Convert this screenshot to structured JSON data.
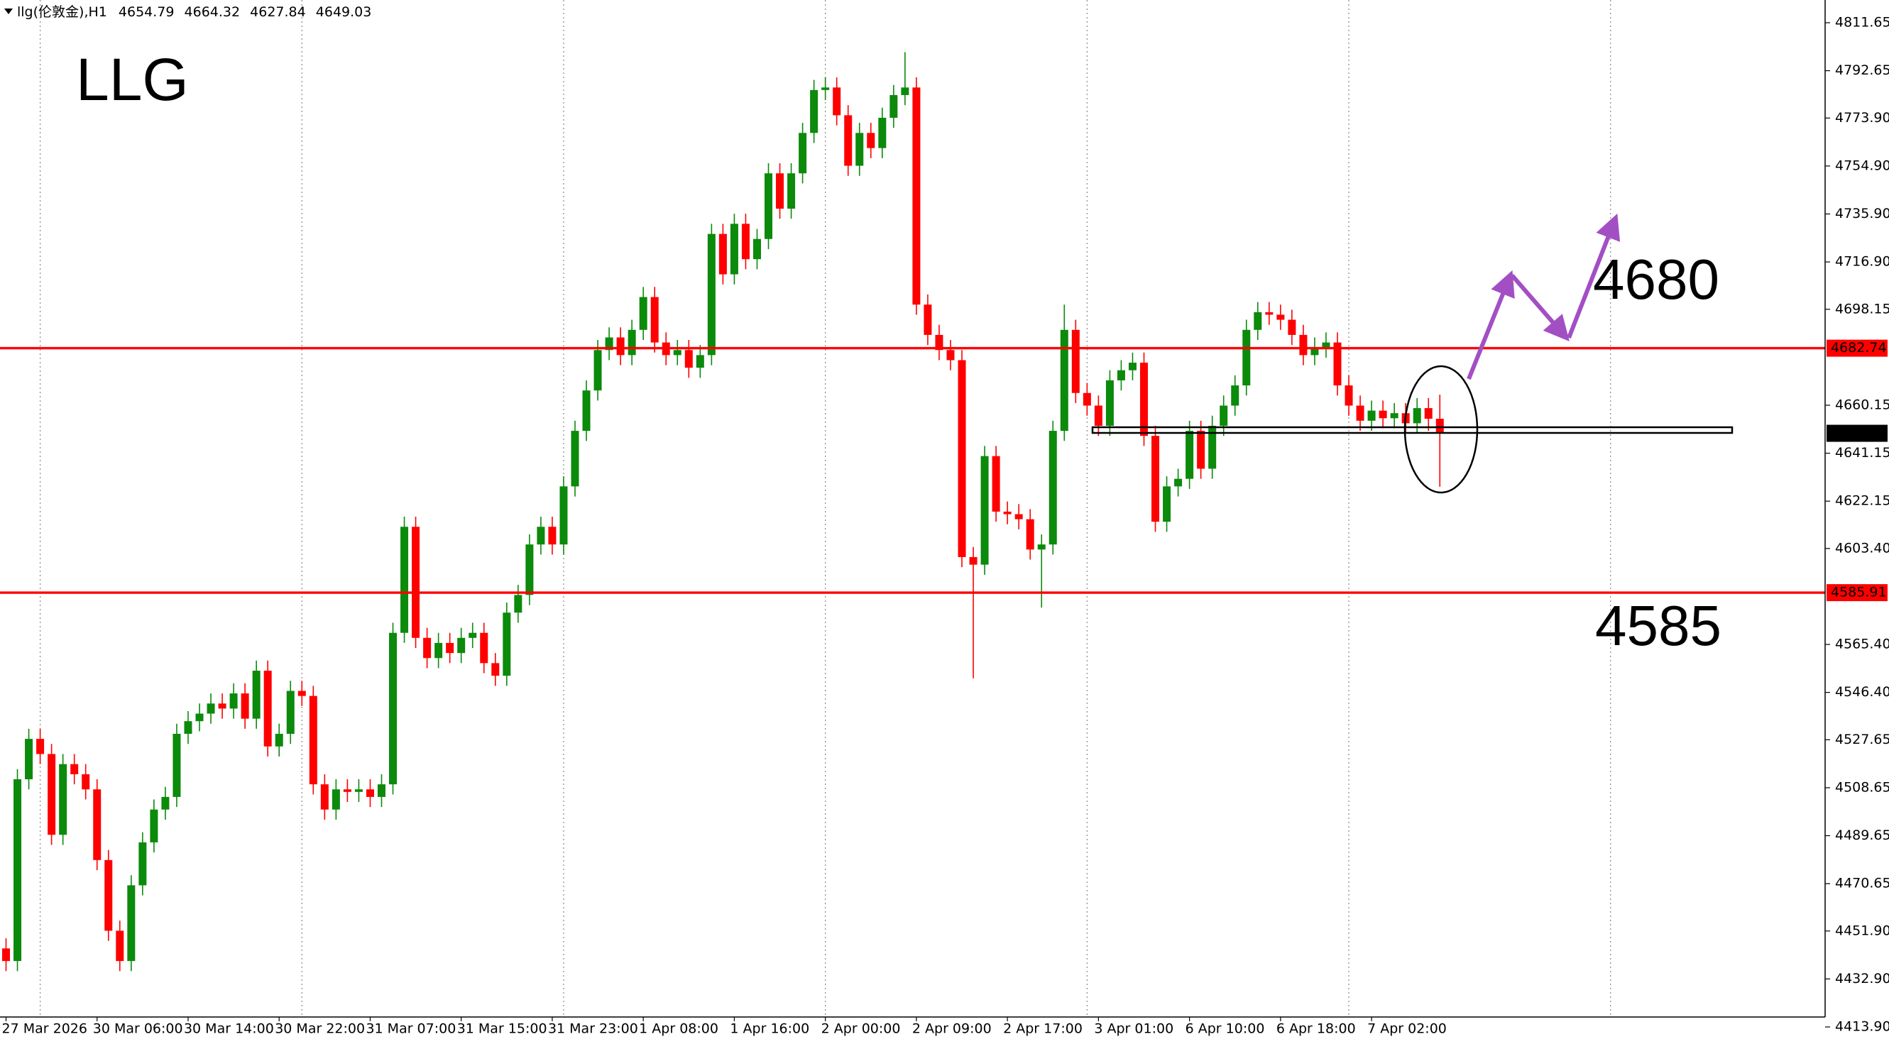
{
  "chart_data": {
    "type": "candlestick",
    "header": "llg(伦敦金),H1",
    "title": "LLG",
    "annotations": [
      "4680",
      "4585"
    ],
    "up_color": "#0b8a0b",
    "down_color": "#ff0000",
    "ylim": [
      4413.9,
      4820.65
    ],
    "yticks": [
      {
        "value": 4413.9,
        "label": "4413.90"
      },
      {
        "value": 4432.9,
        "label": "4432.90"
      },
      {
        "value": 4451.9,
        "label": "4451.90"
      },
      4470.65,
      4489.65,
      4508.65,
      4527.65,
      {
        "value": 4546.4,
        "label": "4546.40"
      },
      {
        "value": 4565.4,
        "label": "4565.40"
      },
      {
        "value": 4603.4,
        "label": "4603.40"
      },
      4622.15,
      4641.15,
      4660.15,
      4698.15,
      {
        "value": 4716.9,
        "label": "4716.90"
      },
      {
        "value": 4735.9,
        "label": "4735.90"
      },
      {
        "value": 4754.9,
        "label": "4754.90"
      },
      {
        "value": 4773.9,
        "label": "4773.90"
      },
      4792.65,
      4811.65
    ],
    "hlines": [
      {
        "value": 4682.74,
        "color": "#ff0000"
      },
      {
        "value": 4585.91,
        "color": "#ff0000"
      }
    ],
    "categories": [
      "27 Mar 2026",
      null,
      null,
      null,
      null,
      null,
      null,
      null,
      "30 Mar 06:00",
      null,
      null,
      null,
      null,
      null,
      null,
      null,
      "30 Mar 14:00",
      null,
      null,
      null,
      null,
      null,
      null,
      null,
      "30 Mar 22:00",
      null,
      null,
      null,
      null,
      null,
      null,
      null,
      "31 Mar 07:00",
      null,
      null,
      null,
      null,
      null,
      null,
      null,
      "31 Mar 15:00",
      null,
      null,
      null,
      null,
      null,
      null,
      null,
      "31 Mar 23:00",
      null,
      null,
      null,
      null,
      null,
      null,
      null,
      "1 Apr 08:00",
      null,
      null,
      null,
      null,
      null,
      null,
      null,
      "1 Apr 16:00",
      null,
      null,
      null,
      null,
      null,
      null,
      null,
      "2 Apr 00:00",
      null,
      null,
      null,
      null,
      null,
      null,
      null,
      "2 Apr 09:00",
      null,
      null,
      null,
      null,
      null,
      null,
      null,
      "2 Apr 17:00",
      null,
      null,
      null,
      null,
      null,
      null,
      null,
      "3 Apr 01:00",
      null,
      null,
      null,
      null,
      null,
      null,
      null,
      "6 Apr 10:00",
      null,
      null,
      null,
      null,
      null,
      null,
      null,
      "6 Apr 18:00",
      null,
      null,
      null,
      null,
      null,
      null,
      null,
      "7 Apr 02:00",
      null,
      null,
      null,
      null,
      null,
      null
    ],
    "open": [
      4445,
      4440,
      4512,
      4528,
      4522,
      4490,
      4518,
      4514,
      4508,
      4480,
      4452,
      4440,
      4470,
      4487,
      4500,
      4505,
      4530,
      4535,
      4538,
      4542,
      4540,
      4546,
      4536,
      4555,
      4525,
      4530,
      4547,
      4545,
      4510,
      4500,
      4508,
      4507,
      4508,
      4505,
      4510,
      4570,
      4612,
      4568,
      4560,
      4566,
      4562,
      4568,
      4570,
      4558,
      4553,
      4578,
      4585,
      4605,
      4612,
      4605,
      4628,
      4650,
      4666,
      4682,
      4687,
      4680,
      4690,
      4703,
      4685,
      4680,
      4682,
      4675,
      4680,
      4728,
      4712,
      4732,
      4718,
      4726,
      4752,
      4738,
      4752,
      4768,
      4785,
      4786,
      4775,
      4755,
      4768,
      4762,
      4774,
      4783,
      4786,
      4700,
      4688,
      4682,
      4678,
      4600,
      4597,
      4640,
      4618,
      4617,
      4615,
      4603,
      4605,
      4650,
      4690,
      4665,
      4660,
      4652,
      4670,
      4674,
      4677,
      4648,
      4614,
      4628,
      4631,
      4650,
      4635,
      4652,
      4660,
      4668,
      4690,
      4697,
      4696,
      4694,
      4688,
      4680,
      4683,
      4685,
      4668,
      4660,
      4654,
      4658,
      4655,
      4657,
      4653,
      4659,
      4654.79
    ],
    "high": [
      4449,
      4516,
      4532,
      4532,
      4526,
      4522,
      4522,
      4518,
      4512,
      4484,
      4456,
      4474,
      4491,
      4504,
      4509,
      4534,
      4539,
      4542,
      4546,
      4546,
      4550,
      4550,
      4559,
      4559,
      4534,
      4551,
      4551,
      4549,
      4514,
      4512,
      4512,
      4512,
      4512,
      4514,
      4574,
      4616,
      4616,
      4572,
      4570,
      4570,
      4572,
      4574,
      4574,
      4562,
      4582,
      4589,
      4609,
      4616,
      4616,
      4632,
      4654,
      4670,
      4686,
      4691,
      4691,
      4694,
      4707,
      4707,
      4689,
      4686,
      4686,
      4684,
      4732,
      4732,
      4736,
      4736,
      4730,
      4756,
      4756,
      4756,
      4772,
      4789,
      4790,
      4790,
      4779,
      4772,
      4772,
      4778,
      4787,
      4800,
      4790,
      4704,
      4692,
      4686,
      4682,
      4604,
      4644,
      4644,
      4622,
      4621,
      4619,
      4609,
      4654,
      4700,
      4694,
      4669,
      4664,
      4674,
      4678,
      4681,
      4681,
      4652,
      4632,
      4635,
      4654,
      4654,
      4656,
      4664,
      4672,
      4694,
      4701,
      4701,
      4700,
      4698,
      4692,
      4687,
      4689,
      4689,
      4672,
      4664,
      4662,
      4662,
      4661,
      4661,
      4663,
      4663,
      4664.32
    ],
    "low": [
      4436,
      4436,
      4508,
      4518,
      4486,
      4486,
      4510,
      4504,
      4476,
      4448,
      4436,
      4436,
      4466,
      4483,
      4496,
      4501,
      4526,
      4531,
      4534,
      4536,
      4536,
      4532,
      4532,
      4521,
      4521,
      4526,
      4541,
      4506,
      4496,
      4496,
      4503,
      4503,
      4501,
      4501,
      4506,
      4566,
      4564,
      4556,
      4556,
      4558,
      4558,
      4564,
      4554,
      4549,
      4549,
      4574,
      4581,
      4601,
      4601,
      4601,
      4624,
      4646,
      4662,
      4678,
      4676,
      4676,
      4686,
      4681,
      4676,
      4676,
      4671,
      4671,
      4676,
      4708,
      4708,
      4714,
      4714,
      4722,
      4734,
      4734,
      4748,
      4764,
      4781,
      4771,
      4751,
      4751,
      4758,
      4758,
      4770,
      4779,
      4696,
      4684,
      4678,
      4674,
      4596,
      4552,
      4593,
      4614,
      4613,
      4611,
      4599,
      4580,
      4601,
      4646,
      4661,
      4656,
      4648,
      4648,
      4666,
      4670,
      4644,
      4610,
      4610,
      4624,
      4627,
      4631,
      4631,
      4648,
      4656,
      4664,
      4686,
      4692,
      4690,
      4684,
      4676,
      4676,
      4679,
      4664,
      4656,
      4650,
      4650,
      4651,
      4651,
      4649,
      4649,
      4650,
      4627.84
    ],
    "close": [
      4440,
      4512,
      4528,
      4522,
      4490,
      4518,
      4514,
      4508,
      4480,
      4452,
      4440,
      4470,
      4487,
      4500,
      4505,
      4530,
      4535,
      4538,
      4542,
      4540,
      4546,
      4536,
      4555,
      4525,
      4530,
      4547,
      4545,
      4510,
      4500,
      4508,
      4507,
      4508,
      4505,
      4510,
      4570,
      4612,
      4568,
      4560,
      4566,
      4562,
      4568,
      4570,
      4558,
      4553,
      4578,
      4585,
      4605,
      4612,
      4605,
      4628,
      4650,
      4666,
      4682,
      4687,
      4680,
      4690,
      4703,
      4685,
      4680,
      4682,
      4675,
      4680,
      4728,
      4712,
      4732,
      4718,
      4726,
      4752,
      4738,
      4752,
      4768,
      4785,
      4786,
      4775,
      4755,
      4768,
      4762,
      4774,
      4783,
      4786,
      4700,
      4688,
      4682,
      4678,
      4600,
      4597,
      4640,
      4618,
      4617,
      4615,
      4603,
      4605,
      4650,
      4690,
      4665,
      4660,
      4652,
      4670,
      4674,
      4677,
      4648,
      4614,
      4628,
      4631,
      4650,
      4635,
      4652,
      4660,
      4668,
      4690,
      4697,
      4696,
      4694,
      4688,
      4680,
      4683,
      4685,
      4668,
      4660,
      4654,
      4658,
      4655,
      4657,
      4653,
      4659,
      4654.79,
      4649.03
    ]
  }
}
